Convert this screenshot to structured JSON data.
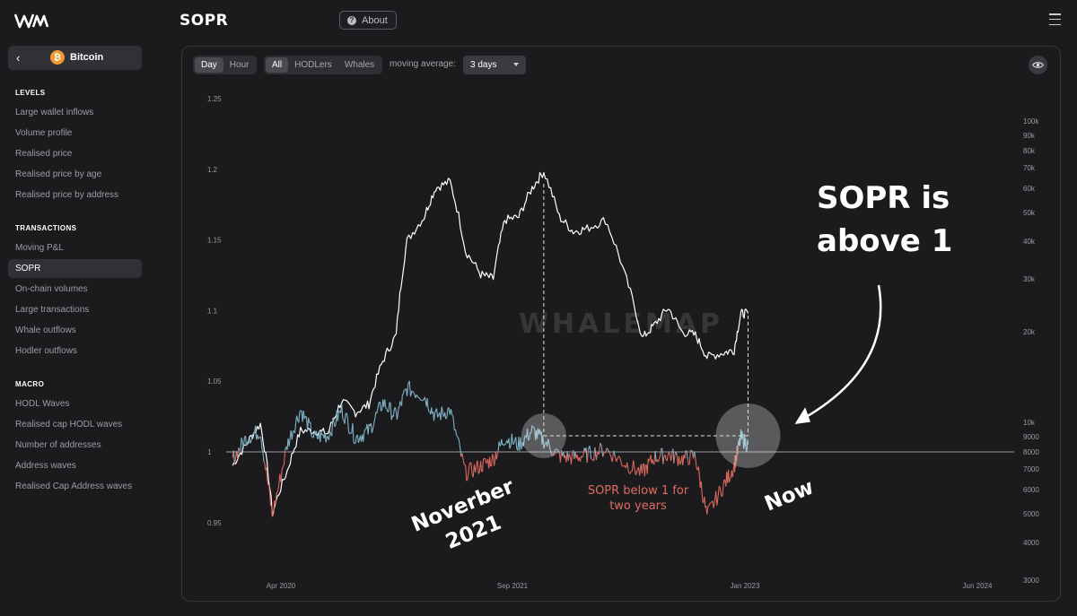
{
  "header": {
    "page_title": "SOPR",
    "about_label": "About"
  },
  "sidebar": {
    "asset": "Bitcoin",
    "sections": [
      {
        "title": "LEVELS",
        "items": [
          "Large wallet inflows",
          "Volume profile",
          "Realised price",
          "Realised price by age",
          "Realised price by address"
        ]
      },
      {
        "title": "TRANSACTIONS",
        "items": [
          "Moving P&L",
          "SOPR",
          "On-chain volumes",
          "Large transactions",
          "Whale outflows",
          "Hodler outflows"
        ]
      },
      {
        "title": "MACRO",
        "items": [
          "HODL Waves",
          "Realised cap HODL waves",
          "Number of addresses",
          "Address waves",
          "Realised Cap Address waves"
        ]
      }
    ],
    "active_item": "SOPR"
  },
  "controls": {
    "timeframe": [
      "Day",
      "Hour"
    ],
    "timeframe_active": "Day",
    "cohort": [
      "All",
      "HODLers",
      "Whales"
    ],
    "cohort_active": "All",
    "ma_label": "moving average:",
    "ma_value": "3 days"
  },
  "chart_data": {
    "type": "line",
    "watermark": "WHALEMAP",
    "x_ticks": [
      "Apr 2020",
      "Sep 2021",
      "Jan 2023",
      "Jun 2024"
    ],
    "x_range": [
      "2019-12-01",
      "2024-10-01"
    ],
    "y_left": {
      "ticks": [
        "1.25",
        "1.2",
        "1.15",
        "1.1",
        "1.05",
        "1",
        "0.95"
      ],
      "range": [
        0.93,
        1.26
      ]
    },
    "y_right": {
      "scale": "log",
      "ticks": [
        "100k",
        "90k",
        "80k",
        "70k",
        "60k",
        "50k",
        "40k",
        "30k",
        "20k",
        "10k",
        "9000",
        "8000",
        "7000",
        "6000",
        "5000",
        "4000",
        "3000"
      ]
    },
    "series": [
      {
        "axis": "right",
        "color": "#ffffff",
        "points": [
          [
            "2019-12-15",
            7200
          ],
          [
            "2020-01-15",
            8500
          ],
          [
            "2020-02-15",
            9900
          ],
          [
            "2020-03-13",
            5000
          ],
          [
            "2020-04-15",
            6900
          ],
          [
            "2020-05-15",
            9400
          ],
          [
            "2020-06-15",
            9400
          ],
          [
            "2020-07-15",
            9200
          ],
          [
            "2020-08-15",
            11800
          ],
          [
            "2020-09-15",
            10800
          ],
          [
            "2020-10-15",
            11500
          ],
          [
            "2020-11-15",
            16000
          ],
          [
            "2020-12-15",
            19500
          ],
          [
            "2021-01-08",
            40000
          ],
          [
            "2021-02-15",
            48000
          ],
          [
            "2021-03-13",
            60000
          ],
          [
            "2021-04-14",
            63000
          ],
          [
            "2021-05-19",
            37000
          ],
          [
            "2021-06-22",
            31000
          ],
          [
            "2021-07-20",
            30000
          ],
          [
            "2021-08-15",
            47000
          ],
          [
            "2021-09-15",
            48000
          ],
          [
            "2021-10-15",
            60000
          ],
          [
            "2021-11-10",
            68000
          ],
          [
            "2021-12-15",
            48000
          ],
          [
            "2022-01-15",
            43000
          ],
          [
            "2022-02-15",
            44000
          ],
          [
            "2022-03-28",
            47000
          ],
          [
            "2022-05-10",
            31000
          ],
          [
            "2022-06-18",
            19000
          ],
          [
            "2022-07-15",
            21000
          ],
          [
            "2022-08-15",
            24000
          ],
          [
            "2022-09-15",
            20000
          ],
          [
            "2022-10-15",
            19500
          ],
          [
            "2022-11-10",
            16500
          ],
          [
            "2022-12-15",
            17000
          ],
          [
            "2023-01-10",
            17400
          ],
          [
            "2023-01-25",
            23000
          ],
          [
            "2023-02-10",
            23000
          ]
        ]
      },
      {
        "name": "SOPR",
        "axis": "left",
        "color_above": "#7fb2c4",
        "color_below": "#d9675c",
        "points": [
          [
            "2019-12-15",
            0.995
          ],
          [
            "2020-01-15",
            1.01
          ],
          [
            "2020-02-15",
            1.015
          ],
          [
            "2020-03-13",
            0.955
          ],
          [
            "2020-04-15",
            1.005
          ],
          [
            "2020-05-15",
            1.03
          ],
          [
            "2020-06-15",
            1.01
          ],
          [
            "2020-07-15",
            1.012
          ],
          [
            "2020-08-15",
            1.03
          ],
          [
            "2020-09-15",
            1.01
          ],
          [
            "2020-10-15",
            1.015
          ],
          [
            "2020-11-15",
            1.035
          ],
          [
            "2020-12-15",
            1.025
          ],
          [
            "2021-01-08",
            1.045
          ],
          [
            "2021-02-15",
            1.04
          ],
          [
            "2021-03-13",
            1.025
          ],
          [
            "2021-04-14",
            1.03
          ],
          [
            "2021-05-19",
            0.985
          ],
          [
            "2021-06-22",
            0.99
          ],
          [
            "2021-07-20",
            0.995
          ],
          [
            "2021-08-15",
            1.01
          ],
          [
            "2021-09-15",
            1.005
          ],
          [
            "2021-10-15",
            1.015
          ],
          [
            "2021-11-10",
            1.008
          ],
          [
            "2021-12-15",
            0.997
          ],
          [
            "2022-01-15",
            0.996
          ],
          [
            "2022-02-15",
            0.998
          ],
          [
            "2022-03-28",
            1.002
          ],
          [
            "2022-05-10",
            0.992
          ],
          [
            "2022-06-18",
            0.985
          ],
          [
            "2022-07-15",
            0.996
          ],
          [
            "2022-08-15",
            0.998
          ],
          [
            "2022-09-15",
            0.995
          ],
          [
            "2022-10-15",
            0.997
          ],
          [
            "2022-11-10",
            0.955
          ],
          [
            "2022-12-15",
            0.975
          ],
          [
            "2023-01-10",
            0.99
          ],
          [
            "2023-01-25",
            1.01
          ],
          [
            "2023-02-10",
            1.005
          ]
        ]
      }
    ],
    "reference_line": {
      "axis": "left",
      "y": 1
    },
    "annotations": [
      {
        "text_lines": [
          "SOPR is",
          "above 1"
        ],
        "color": "#ffffff"
      },
      {
        "text_lines": [
          "Noverber",
          "2021"
        ],
        "color": "#ffffff"
      },
      {
        "text_lines": [
          "SOPR below 1 for",
          "two years"
        ],
        "color": "#e06b5f"
      },
      {
        "text_lines": [
          "Now"
        ],
        "color": "#ffffff"
      }
    ],
    "highlights": [
      "2021-11-10",
      "2023-02-10"
    ]
  }
}
